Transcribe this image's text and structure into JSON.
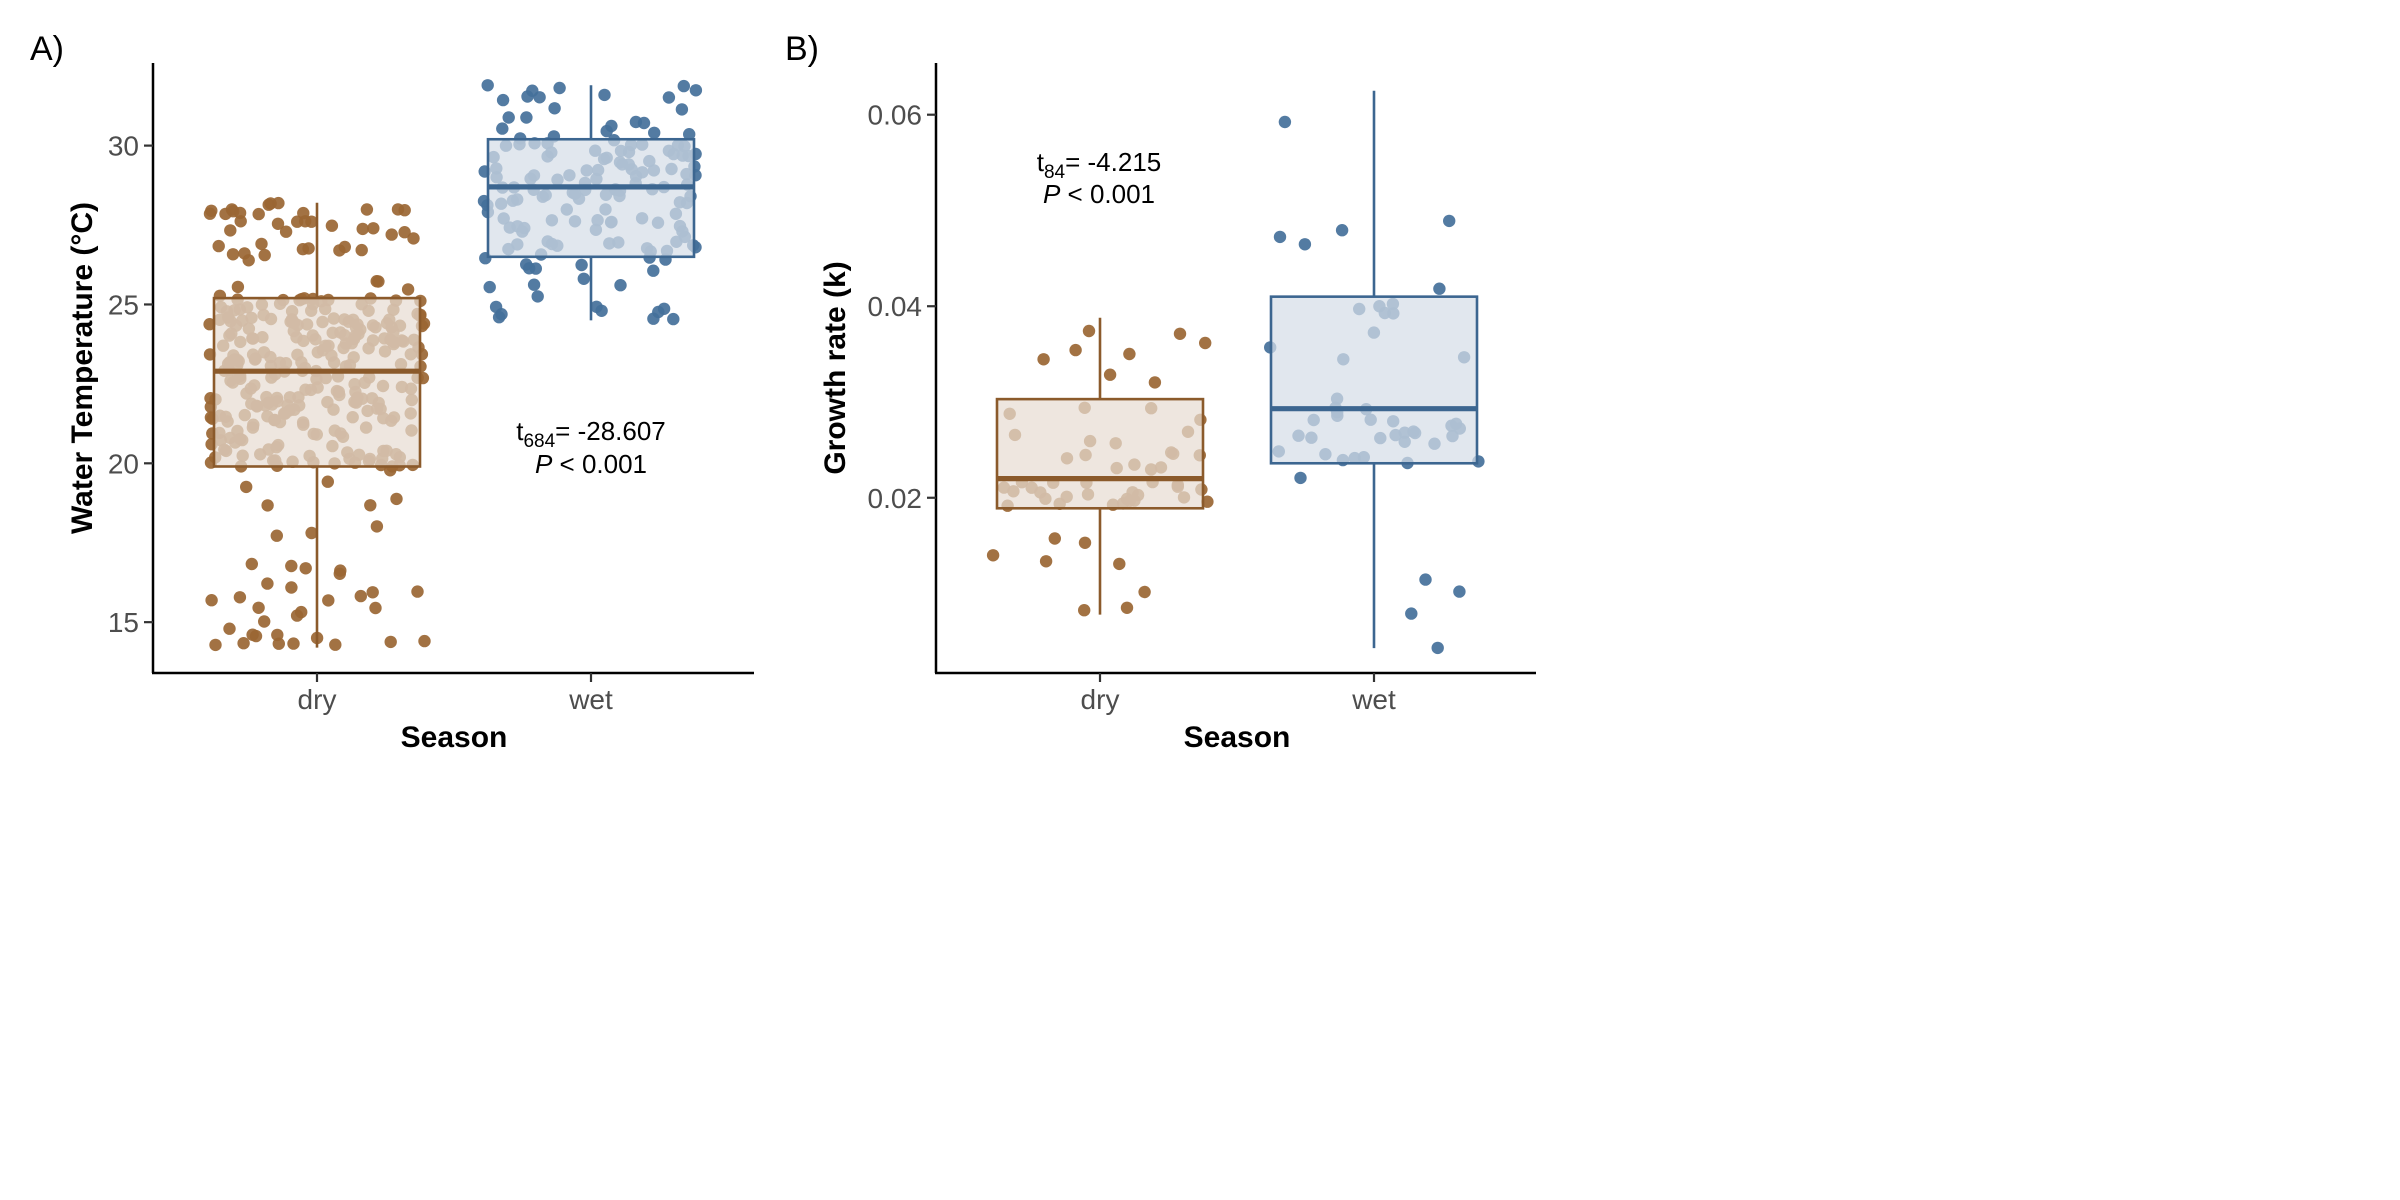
{
  "colors": {
    "dry": "#8B5A2B",
    "wet": "#3C6690",
    "dry_point": "#9A6633",
    "wet_point": "#44709A",
    "dry_fill": "#E8DCD2",
    "wet_fill": "#D6DEE8"
  },
  "chart_data": [
    {
      "type": "boxplot",
      "panel": "A)",
      "xlabel": "Season",
      "ylabel": "Water Temperature (°C)",
      "categories": [
        "dry",
        "wet"
      ],
      "ylim": [
        13.4,
        32.6
      ],
      "yticks": [
        15,
        20,
        25,
        30
      ],
      "ytick_labels": [
        "15",
        "20",
        "25",
        "30"
      ],
      "jitter_points_per_group": [
        340,
        150
      ],
      "boxes": [
        {
          "group": "dry",
          "whisker_low": 14.2,
          "q1": 19.9,
          "median": 22.9,
          "q3": 25.2,
          "whisker_high": 28.2
        },
        {
          "group": "wet",
          "whisker_low": 24.5,
          "q1": 26.5,
          "median": 28.7,
          "q3": 30.2,
          "whisker_high": 31.9
        }
      ],
      "annotation": {
        "t_label": "t",
        "t_subscript": "684",
        "t_value": "= -28.607",
        "p_label": "P",
        "p_value": " < 0.001"
      },
      "grid": false,
      "legend": "none"
    },
    {
      "type": "boxplot",
      "panel": "B)",
      "xlabel": "Season",
      "ylabel": "Growth rate (k)",
      "categories": [
        "dry",
        "wet"
      ],
      "ylim": [
        0.0017,
        0.0654
      ],
      "yticks": [
        0.02,
        0.04,
        0.06
      ],
      "ytick_labels": [
        "0.02",
        "0.04",
        "0.06"
      ],
      "jitter_points_per_group": [
        58,
        48
      ],
      "boxes": [
        {
          "group": "dry",
          "whisker_low": 0.0078,
          "q1": 0.0189,
          "median": 0.022,
          "q3": 0.0303,
          "whisker_high": 0.0388
        },
        {
          "group": "wet",
          "whisker_low": 0.0043,
          "q1": 0.0236,
          "median": 0.0293,
          "q3": 0.041,
          "whisker_high": 0.0625
        }
      ],
      "annotation": {
        "t_label": "t",
        "t_subscript": "84",
        "t_value": "= -4.215",
        "p_label": "P",
        "p_value": " < 0.001"
      },
      "grid": false,
      "legend": "none"
    }
  ]
}
